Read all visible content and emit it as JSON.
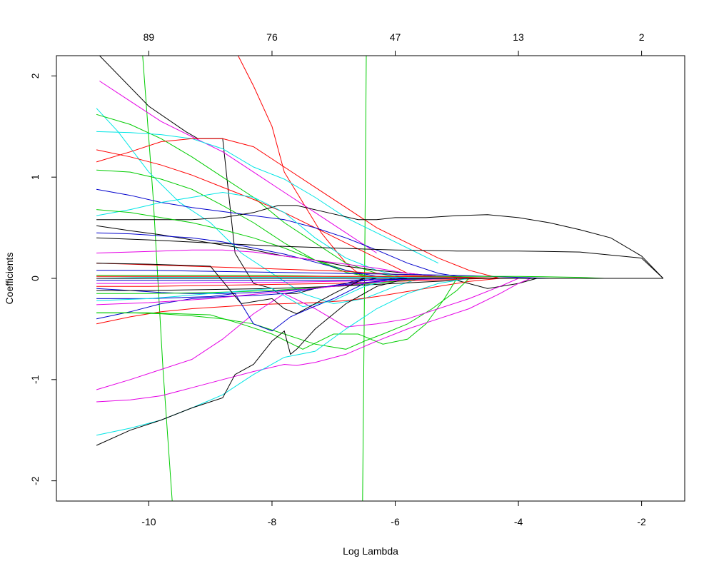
{
  "chart_data": {
    "type": "line",
    "title": "",
    "xlabel": "Log Lambda",
    "ylabel": "Coefficients",
    "xlim": [
      -11.5,
      -1.3
    ],
    "ylim": [
      -2.2,
      2.2
    ],
    "x_ticks": [
      -10,
      -8,
      -6,
      -4,
      -2
    ],
    "y_ticks": [
      -2,
      -1,
      0,
      1,
      2
    ],
    "top_axis": {
      "positions": [
        -10,
        -8,
        -6,
        -4,
        -2
      ],
      "labels": [
        "89",
        "76",
        "47",
        "13",
        "2"
      ]
    },
    "grid": false,
    "legend": "none",
    "colors": [
      "#000000",
      "#ff0000",
      "#00cc00",
      "#0000cc",
      "#00e5e5",
      "#e500e5"
    ],
    "series": [
      {
        "color": "#00cc00",
        "x": [
          -10.1,
          -9.93,
          -9.77,
          -9.62
        ],
        "y": [
          2.2,
          0.8,
          -0.9,
          -2.2
        ]
      },
      {
        "color": "#00cc00",
        "x": [
          -6.53,
          -6.51,
          -6.49,
          -6.47
        ],
        "y": [
          -2.2,
          -0.9,
          0.5,
          2.2
        ]
      },
      {
        "color": "#ff0000",
        "x": [
          -8.55,
          -8.3,
          -8.0,
          -7.8,
          -7.6,
          -7.2,
          -6.8,
          -6.5
        ],
        "y": [
          2.2,
          1.9,
          1.5,
          1.05,
          0.85,
          0.45,
          0.15,
          0.0
        ]
      },
      {
        "color": "#000000",
        "x": [
          -10.8,
          -10.0,
          -9.4,
          -9.2,
          -8.8,
          -8.6,
          -8.3,
          -8.0,
          -7.9,
          -7.6,
          -7.3,
          -6.8,
          -6.5
        ],
        "y": [
          2.2,
          1.7,
          1.45,
          1.38,
          1.38,
          0.25,
          -0.05,
          -0.1,
          -0.15,
          -0.15,
          -0.1,
          -0.05,
          0.0
        ]
      },
      {
        "color": "#e500e5",
        "x": [
          -10.8,
          -10.3,
          -9.8,
          -9.3,
          -8.8,
          -8.3,
          -7.8,
          -7.3,
          -6.8,
          -6.3
        ],
        "y": [
          1.95,
          1.75,
          1.55,
          1.4,
          1.25,
          1.05,
          0.85,
          0.65,
          0.45,
          0.25
        ]
      },
      {
        "color": "#00e5e5",
        "x": [
          -10.85,
          -10.5,
          -10.0,
          -9.5,
          -9.0,
          -8.5,
          -8.0,
          -7.5,
          -7.0,
          -6.5,
          -6.0,
          -5.6
        ],
        "y": [
          1.68,
          1.45,
          1.05,
          0.75,
          0.55,
          0.25,
          0.05,
          -0.15,
          -0.25,
          -0.2,
          -0.08,
          0.0
        ]
      },
      {
        "color": "#00cc00",
        "x": [
          -10.85,
          -10.3,
          -9.8,
          -9.3,
          -8.8,
          -8.3,
          -7.8,
          -7.3,
          -6.8,
          -6.3,
          -5.8
        ],
        "y": [
          1.62,
          1.52,
          1.38,
          1.2,
          1.0,
          0.8,
          0.55,
          0.35,
          0.15,
          0.05,
          0.0
        ]
      },
      {
        "color": "#00e5e5",
        "x": [
          -10.85,
          -10.3,
          -9.8,
          -9.3,
          -8.8,
          -8.3,
          -7.8,
          -7.3,
          -6.8,
          -6.3,
          -5.8,
          -5.3
        ],
        "y": [
          1.45,
          1.44,
          1.42,
          1.38,
          1.28,
          1.1,
          0.98,
          0.8,
          0.6,
          0.45,
          0.3,
          0.15
        ]
      },
      {
        "color": "#ff0000",
        "x": [
          -10.85,
          -10.3,
          -9.8,
          -9.3,
          -8.8,
          -8.3,
          -7.8,
          -7.3,
          -6.8,
          -6.3,
          -5.8
        ],
        "y": [
          1.27,
          1.2,
          1.12,
          1.02,
          0.9,
          0.78,
          0.65,
          0.5,
          0.35,
          0.2,
          0.05
        ]
      },
      {
        "color": "#ff0000",
        "x": [
          -10.85,
          -10.3,
          -9.8,
          -9.3,
          -8.8,
          -8.3,
          -7.8,
          -7.3,
          -6.8,
          -6.3,
          -5.8,
          -5.3,
          -4.8,
          -4.3
        ],
        "y": [
          1.15,
          1.25,
          1.35,
          1.38,
          1.38,
          1.3,
          1.1,
          0.9,
          0.7,
          0.5,
          0.35,
          0.2,
          0.08,
          0.0
        ]
      },
      {
        "color": "#00cc00",
        "x": [
          -10.85,
          -10.3,
          -9.8,
          -9.3,
          -8.8,
          -8.3,
          -7.8,
          -7.3,
          -6.8,
          -6.3
        ],
        "y": [
          1.07,
          1.05,
          0.98,
          0.88,
          0.72,
          0.55,
          0.35,
          0.18,
          0.06,
          0.0
        ]
      },
      {
        "color": "#0000cc",
        "x": [
          -10.85,
          -10.3,
          -9.8,
          -9.3,
          -8.8,
          -8.3,
          -7.8,
          -7.3,
          -6.8,
          -6.3,
          -5.8,
          -5.3,
          -4.8
        ],
        "y": [
          0.88,
          0.82,
          0.75,
          0.7,
          0.66,
          0.62,
          0.58,
          0.5,
          0.4,
          0.28,
          0.15,
          0.05,
          0.0
        ]
      },
      {
        "color": "#000000",
        "x": [
          -10.85,
          -10.0,
          -9.3,
          -8.8,
          -8.3,
          -7.9,
          -7.6,
          -7.1,
          -6.6,
          -6.3,
          -6.0,
          -5.5,
          -5.0,
          -4.5,
          -4.0,
          -3.5,
          -3.0,
          -2.5,
          -2.0,
          -1.65
        ],
        "y": [
          0.58,
          0.58,
          0.58,
          0.6,
          0.65,
          0.72,
          0.72,
          0.65,
          0.58,
          0.58,
          0.6,
          0.6,
          0.62,
          0.63,
          0.6,
          0.55,
          0.48,
          0.4,
          0.22,
          0.0
        ]
      },
      {
        "color": "#00e5e5",
        "x": [
          -10.85,
          -10.3,
          -9.8,
          -9.3,
          -8.8,
          -8.3,
          -7.8,
          -7.3,
          -6.8,
          -6.3,
          -5.8
        ],
        "y": [
          0.62,
          0.68,
          0.75,
          0.8,
          0.85,
          0.8,
          0.65,
          0.4,
          0.2,
          0.08,
          0.0
        ]
      },
      {
        "color": "#00cc00",
        "x": [
          -10.85,
          -10.3,
          -9.8,
          -9.3,
          -8.8,
          -8.3,
          -7.8,
          -7.3,
          -6.8,
          -6.3
        ],
        "y": [
          0.68,
          0.65,
          0.6,
          0.55,
          0.48,
          0.4,
          0.3,
          0.18,
          0.08,
          0.0
        ]
      },
      {
        "color": "#000000",
        "x": [
          -10.85,
          -10.3,
          -9.8,
          -9.3,
          -8.8,
          -8.3,
          -7.8,
          -7.3,
          -6.8,
          -6.3,
          -5.8,
          -5.3,
          -4.8,
          -4.3
        ],
        "y": [
          0.52,
          0.47,
          0.43,
          0.38,
          0.33,
          0.28,
          0.22,
          0.18,
          0.12,
          0.08,
          0.05,
          0.02,
          0.0,
          0.0
        ]
      },
      {
        "color": "#000000",
        "x": [
          -10.85,
          -10.0,
          -9.0,
          -8.0,
          -7.0,
          -6.0,
          -5.0,
          -4.0,
          -3.0,
          -2.0,
          -1.65
        ],
        "y": [
          0.4,
          0.38,
          0.35,
          0.32,
          0.3,
          0.28,
          0.27,
          0.27,
          0.26,
          0.2,
          0.0
        ]
      },
      {
        "color": "#0000cc",
        "x": [
          -10.85,
          -10.3,
          -9.8,
          -9.3,
          -8.8,
          -8.3,
          -7.8,
          -7.3,
          -6.8,
          -6.3,
          -5.8
        ],
        "y": [
          0.45,
          0.44,
          0.42,
          0.4,
          0.36,
          0.3,
          0.24,
          0.16,
          0.08,
          0.02,
          0.0
        ]
      },
      {
        "color": "#e500e5",
        "x": [
          -10.85,
          -10.3,
          -9.8,
          -9.3,
          -8.8,
          -8.3,
          -7.8,
          -7.3,
          -6.8,
          -6.3,
          -5.8,
          -5.3,
          -4.8
        ],
        "y": [
          0.25,
          0.26,
          0.27,
          0.28,
          0.28,
          0.26,
          0.22,
          0.18,
          0.14,
          0.1,
          0.05,
          0.02,
          0.0
        ]
      },
      {
        "color": "#ff0000",
        "x": [
          -10.85,
          -10.3,
          -9.8,
          -9.3,
          -8.8,
          -8.3,
          -7.8,
          -7.3,
          -6.8,
          -6.3,
          -5.8,
          -5.3,
          -4.8,
          -4.3
        ],
        "y": [
          0.15,
          0.14,
          0.13,
          0.12,
          0.11,
          0.1,
          0.09,
          0.08,
          0.07,
          0.05,
          0.03,
          0.02,
          0.01,
          0.0
        ]
      },
      {
        "color": "#0000cc",
        "x": [
          -10.85,
          -10.0,
          -9.0,
          -8.0,
          -7.0,
          -6.0,
          -5.0,
          -4.0,
          -3.5
        ],
        "y": [
          0.08,
          0.08,
          0.07,
          0.06,
          0.05,
          0.04,
          0.03,
          0.01,
          0.0
        ]
      },
      {
        "color": "#00cc00",
        "x": [
          -10.85,
          -10.0,
          -9.0,
          -8.0,
          -7.0,
          -6.0,
          -5.0,
          -4.0,
          -3.0,
          -2.6
        ],
        "y": [
          0.03,
          0.03,
          0.03,
          0.03,
          0.02,
          0.02,
          0.02,
          0.02,
          0.01,
          0.0
        ]
      },
      {
        "color": "#00e5e5",
        "x": [
          -10.85,
          -10.0,
          -9.0,
          -8.0,
          -7.0,
          -6.0,
          -5.0,
          -4.0
        ],
        "y": [
          0.0,
          0.01,
          0.01,
          0.01,
          0.01,
          0.01,
          0.01,
          0.0
        ]
      },
      {
        "color": "#e500e5",
        "x": [
          -10.85,
          -10.0,
          -9.0,
          -8.0,
          -7.0,
          -6.0,
          -5.0
        ],
        "y": [
          -0.05,
          -0.05,
          -0.04,
          -0.04,
          -0.03,
          -0.02,
          0.0
        ]
      },
      {
        "color": "#ff0000",
        "x": [
          -10.85,
          -10.0,
          -9.0,
          -8.0,
          -7.0,
          -6.0,
          -5.0,
          -4.5
        ],
        "y": [
          -0.08,
          -0.08,
          -0.07,
          -0.06,
          -0.05,
          -0.03,
          -0.01,
          0.0
        ]
      },
      {
        "color": "#0000cc",
        "x": [
          -10.85,
          -10.3,
          -9.8,
          -9.3,
          -8.8,
          -8.3,
          -7.8,
          -7.3,
          -6.8,
          -6.3,
          -5.8
        ],
        "y": [
          -0.1,
          -0.12,
          -0.14,
          -0.15,
          -0.15,
          -0.14,
          -0.12,
          -0.1,
          -0.06,
          -0.03,
          0.0
        ]
      },
      {
        "color": "#00cc00",
        "x": [
          -10.85,
          -10.0,
          -9.0,
          -8.0,
          -7.0,
          -6.0,
          -5.5
        ],
        "y": [
          -0.15,
          -0.15,
          -0.14,
          -0.12,
          -0.08,
          -0.03,
          0.0
        ]
      },
      {
        "color": "#000000",
        "x": [
          -10.85,
          -10.0,
          -9.0,
          -8.0,
          -7.0,
          -6.0,
          -5.0,
          -4.5,
          -4.0,
          -3.7
        ],
        "y": [
          -0.12,
          -0.12,
          -0.11,
          -0.1,
          -0.08,
          -0.05,
          -0.02,
          -0.1,
          -0.05,
          0.0
        ]
      },
      {
        "color": "#ff0000",
        "x": [
          -10.85,
          -10.3,
          -9.8,
          -9.3,
          -8.8,
          -8.3,
          -7.8,
          -7.3,
          -6.8,
          -6.3,
          -5.8,
          -5.3,
          -4.8,
          -4.3
        ],
        "y": [
          -0.45,
          -0.38,
          -0.33,
          -0.3,
          -0.28,
          -0.26,
          -0.25,
          -0.24,
          -0.22,
          -0.18,
          -0.13,
          -0.08,
          -0.03,
          0.0
        ]
      },
      {
        "color": "#0000cc",
        "x": [
          -10.85,
          -10.3,
          -9.8,
          -9.3,
          -8.8,
          -8.3,
          -7.8,
          -7.3,
          -6.8,
          -6.3
        ],
        "y": [
          -0.4,
          -0.33,
          -0.25,
          -0.2,
          -0.18,
          -0.17,
          -0.15,
          -0.1,
          -0.05,
          0.0
        ]
      },
      {
        "color": "#00cc00",
        "x": [
          -10.85,
          -10.3,
          -9.8,
          -9.3,
          -8.8,
          -8.3,
          -7.8,
          -7.3,
          -6.8,
          -6.5,
          -6.2,
          -5.8,
          -5.4,
          -5.0,
          -4.8
        ],
        "y": [
          -0.34,
          -0.34,
          -0.35,
          -0.37,
          -0.4,
          -0.45,
          -0.55,
          -0.65,
          -0.7,
          -0.62,
          -0.55,
          -0.45,
          -0.3,
          -0.12,
          0.0
        ]
      },
      {
        "color": "#00cc00",
        "x": [
          -10.85,
          -10.0,
          -9.0,
          -8.5,
          -8.0,
          -7.5,
          -7.0,
          -6.6,
          -6.2,
          -5.8,
          -5.5,
          -5.2,
          -5.0
        ],
        "y": [
          -0.34,
          -0.34,
          -0.36,
          -0.45,
          -0.55,
          -0.7,
          -0.55,
          -0.55,
          -0.65,
          -0.6,
          -0.45,
          -0.2,
          0.0
        ]
      },
      {
        "color": "#e500e5",
        "x": [
          -10.85,
          -10.3,
          -9.8,
          -9.3,
          -8.8,
          -8.3,
          -7.8,
          -7.3,
          -6.8,
          -6.3,
          -5.8,
          -5.3,
          -4.8,
          -4.3,
          -4.0
        ],
        "y": [
          -1.1,
          -1.0,
          -0.9,
          -0.8,
          -0.6,
          -0.35,
          -0.15,
          -0.3,
          -0.48,
          -0.45,
          -0.4,
          -0.3,
          -0.2,
          -0.08,
          0.0
        ]
      },
      {
        "color": "#e500e5",
        "x": [
          -10.85,
          -10.3,
          -9.8,
          -9.3,
          -8.8,
          -8.3,
          -7.8,
          -7.6,
          -7.3,
          -6.8,
          -6.3,
          -5.8,
          -5.3,
          -4.8,
          -4.3,
          -4.0,
          -3.8
        ],
        "y": [
          -1.22,
          -1.2,
          -1.16,
          -1.08,
          -1.0,
          -0.92,
          -0.85,
          -0.86,
          -0.83,
          -0.75,
          -0.62,
          -0.5,
          -0.4,
          -0.3,
          -0.15,
          -0.05,
          0.0
        ]
      },
      {
        "color": "#00e5e5",
        "x": [
          -10.85,
          -10.3,
          -9.8,
          -9.3,
          -8.8,
          -8.3,
          -7.8,
          -7.3,
          -6.8,
          -6.3,
          -5.8,
          -5.3,
          -4.8
        ],
        "y": [
          -1.55,
          -1.48,
          -1.4,
          -1.28,
          -1.15,
          -0.95,
          -0.78,
          -0.72,
          -0.5,
          -0.3,
          -0.15,
          -0.05,
          0.0
        ]
      },
      {
        "color": "#000000",
        "x": [
          -10.85,
          -10.3,
          -9.8,
          -9.3,
          -8.8,
          -8.6,
          -8.3,
          -8.0,
          -7.8,
          -7.7,
          -7.6,
          -7.3,
          -6.8,
          -6.3,
          -5.8
        ],
        "y": [
          -1.65,
          -1.5,
          -1.4,
          -1.28,
          -1.18,
          -0.95,
          -0.85,
          -0.62,
          -0.52,
          -0.75,
          -0.7,
          -0.5,
          -0.25,
          -0.08,
          0.0
        ]
      },
      {
        "color": "#0000cc",
        "x": [
          -10.85,
          -10.0,
          -9.0,
          -8.6,
          -8.3,
          -8.0,
          -7.7,
          -7.4,
          -7.0,
          -6.5,
          -6.0
        ],
        "y": [
          -0.2,
          -0.2,
          -0.18,
          -0.15,
          -0.45,
          -0.52,
          -0.38,
          -0.3,
          -0.2,
          -0.05,
          0.0
        ]
      },
      {
        "color": "#00e5e5",
        "x": [
          -10.85,
          -10.0,
          -9.0,
          -8.0,
          -7.5,
          -7.0,
          -6.5,
          -6.0
        ],
        "y": [
          -0.22,
          -0.2,
          -0.15,
          -0.1,
          -0.28,
          -0.22,
          -0.08,
          0.0
        ]
      },
      {
        "color": "#e500e5",
        "x": [
          -10.85,
          -10.0,
          -9.0,
          -8.0,
          -7.0,
          -6.0,
          -5.5
        ],
        "y": [
          -0.26,
          -0.24,
          -0.2,
          -0.14,
          -0.08,
          -0.02,
          0.0
        ]
      },
      {
        "color": "#000000",
        "x": [
          -10.85,
          -10.0,
          -9.0,
          -8.5,
          -8.0,
          -7.8,
          -7.6,
          -7.0,
          -6.5
        ],
        "y": [
          0.15,
          0.14,
          0.12,
          -0.25,
          -0.2,
          -0.3,
          -0.35,
          -0.15,
          0.0
        ]
      },
      {
        "color": "#ff0000",
        "x": [
          -10.85,
          -10.0,
          -9.0,
          -8.0,
          -7.0,
          -6.0,
          -5.0,
          -4.0
        ],
        "y": [
          0.02,
          0.02,
          0.02,
          0.02,
          0.02,
          0.02,
          0.01,
          0.0
        ]
      },
      {
        "color": "#0000cc",
        "x": [
          -10.85,
          -10.0,
          -9.0,
          -8.0,
          -7.0,
          -6.0,
          -5.0
        ],
        "y": [
          -0.02,
          -0.02,
          -0.02,
          -0.02,
          -0.02,
          -0.01,
          0.0
        ]
      },
      {
        "color": "#000000",
        "x": [
          -10.85,
          -9.0,
          -7.0,
          -5.0,
          -3.0,
          -1.65
        ],
        "y": [
          0.0,
          0.0,
          0.0,
          0.0,
          0.0,
          0.0
        ]
      }
    ]
  }
}
